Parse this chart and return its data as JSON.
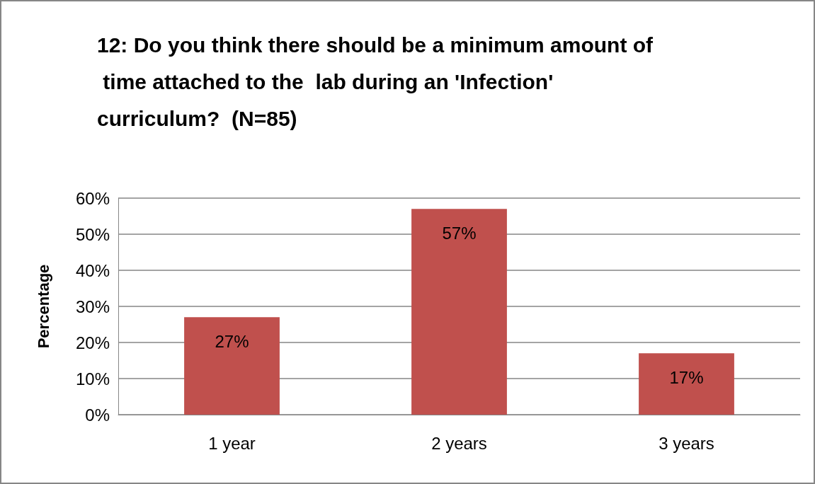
{
  "chart_data": {
    "type": "bar",
    "title": "12: Do you think there should be a minimum amount of time attached to the  lab during an 'Infection' curriculum?  (N=85)",
    "ylabel": "Percentage",
    "categories": [
      "1 year",
      "2 years",
      "3 years"
    ],
    "values": [
      27,
      57,
      17
    ],
    "value_labels": [
      "27%",
      "57%",
      "17%"
    ],
    "color": "#c0504d",
    "ylim": [
      0,
      60
    ],
    "yticks": [
      {
        "value": 0,
        "label": "0%"
      },
      {
        "value": 10,
        "label": "10%"
      },
      {
        "value": 20,
        "label": "20%"
      },
      {
        "value": 30,
        "label": "30%"
      },
      {
        "value": 40,
        "label": "40%"
      },
      {
        "value": 50,
        "label": "50%"
      },
      {
        "value": 60,
        "label": "60%"
      }
    ],
    "grid": "y"
  }
}
